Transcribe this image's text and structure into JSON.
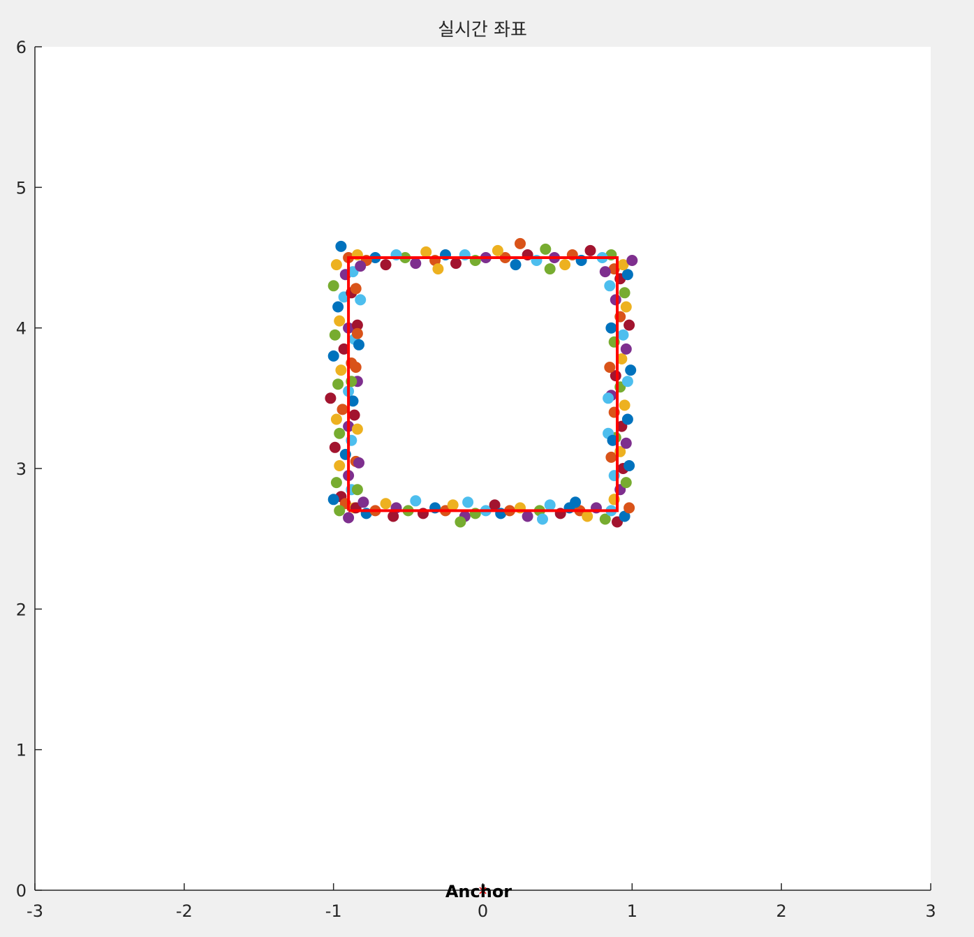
{
  "chart_data": {
    "type": "scatter",
    "title": "실시간 좌표",
    "xlabel": "",
    "ylabel": "",
    "xlim": [
      -3,
      3
    ],
    "ylim": [
      0,
      6
    ],
    "xticks": [
      "-3",
      "-2",
      "-1",
      "0",
      "1",
      "2",
      "3"
    ],
    "yticks": [
      "0",
      "1",
      "2",
      "3",
      "4",
      "5",
      "6"
    ],
    "grid": false,
    "reference_path": {
      "color": "#ff0000",
      "points": [
        [
          -0.9,
          2.7
        ],
        [
          0.9,
          2.7
        ],
        [
          0.9,
          4.5
        ],
        [
          -0.9,
          4.5
        ],
        [
          -0.9,
          2.7
        ]
      ]
    },
    "anchor": {
      "label": "Anchor",
      "x": 0,
      "y": 0,
      "color": "#ff0000"
    },
    "point_colors": [
      "#0072bd",
      "#d95319",
      "#edb120",
      "#7e2f8e",
      "#77ac30",
      "#4dbeee",
      "#a2142f"
    ],
    "points": [
      [
        -0.95,
        4.58
      ],
      [
        -0.9,
        4.5
      ],
      [
        -0.98,
        4.45
      ],
      [
        -0.92,
        4.38
      ],
      [
        -1.0,
        4.3
      ],
      [
        -0.93,
        4.22
      ],
      [
        -0.88,
        4.25
      ],
      [
        -0.97,
        4.15
      ],
      [
        -0.85,
        4.28
      ],
      [
        -0.96,
        4.05
      ],
      [
        -0.9,
        4.0
      ],
      [
        -0.99,
        3.95
      ],
      [
        -0.86,
        3.92
      ],
      [
        -0.93,
        3.85
      ],
      [
        -1.0,
        3.8
      ],
      [
        -0.88,
        3.75
      ],
      [
        -0.95,
        3.7
      ],
      [
        -0.84,
        3.62
      ],
      [
        -0.97,
        3.6
      ],
      [
        -0.9,
        3.55
      ],
      [
        -1.02,
        3.5
      ],
      [
        -0.87,
        3.48
      ],
      [
        -0.94,
        3.42
      ],
      [
        -0.98,
        3.35
      ],
      [
        -0.9,
        3.3
      ],
      [
        -0.96,
        3.25
      ],
      [
        -0.88,
        3.2
      ],
      [
        -0.99,
        3.15
      ],
      [
        -0.92,
        3.1
      ],
      [
        -0.85,
        3.05
      ],
      [
        -0.96,
        3.02
      ],
      [
        -0.9,
        2.95
      ],
      [
        -0.98,
        2.9
      ],
      [
        -0.88,
        2.85
      ],
      [
        -0.95,
        2.8
      ],
      [
        -1.0,
        2.78
      ],
      [
        -0.92,
        2.75
      ],
      [
        -0.86,
        2.72
      ],
      [
        -0.9,
        2.65
      ],
      [
        -0.96,
        2.7
      ],
      [
        -0.82,
        4.2
      ],
      [
        -0.84,
        4.02
      ],
      [
        -0.83,
        3.88
      ],
      [
        -0.85,
        3.72
      ],
      [
        -0.84,
        3.28
      ],
      [
        -0.83,
        3.04
      ],
      [
        -0.84,
        2.85
      ],
      [
        -0.87,
        4.4
      ],
      [
        -0.85,
        2.72
      ],
      [
        -0.78,
        2.68
      ],
      [
        -0.72,
        2.7
      ],
      [
        -0.65,
        2.75
      ],
      [
        -0.58,
        2.72
      ],
      [
        -0.5,
        2.7
      ],
      [
        -0.45,
        2.77
      ],
      [
        -0.4,
        2.68
      ],
      [
        -0.32,
        2.72
      ],
      [
        -0.25,
        2.7
      ],
      [
        -0.2,
        2.74
      ],
      [
        -0.12,
        2.66
      ],
      [
        -0.05,
        2.68
      ],
      [
        0.02,
        2.7
      ],
      [
        0.08,
        2.74
      ],
      [
        0.12,
        2.68
      ],
      [
        0.18,
        2.7
      ],
      [
        0.25,
        2.72
      ],
      [
        0.3,
        2.66
      ],
      [
        0.38,
        2.7
      ],
      [
        0.45,
        2.74
      ],
      [
        0.52,
        2.68
      ],
      [
        0.58,
        2.72
      ],
      [
        0.65,
        2.7
      ],
      [
        0.7,
        2.66
      ],
      [
        0.76,
        2.72
      ],
      [
        0.82,
        2.64
      ],
      [
        0.86,
        2.7
      ],
      [
        0.9,
        2.62
      ],
      [
        0.95,
        2.66
      ],
      [
        0.98,
        2.72
      ],
      [
        0.88,
        2.78
      ],
      [
        0.92,
        2.85
      ],
      [
        0.96,
        2.9
      ],
      [
        0.88,
        2.95
      ],
      [
        0.94,
        3.0
      ],
      [
        0.98,
        3.02
      ],
      [
        0.86,
        3.08
      ],
      [
        0.92,
        3.12
      ],
      [
        0.96,
        3.18
      ],
      [
        0.89,
        3.22
      ],
      [
        0.84,
        3.25
      ],
      [
        0.93,
        3.3
      ],
      [
        0.97,
        3.35
      ],
      [
        0.88,
        3.4
      ],
      [
        0.95,
        3.45
      ],
      [
        0.86,
        3.52
      ],
      [
        0.92,
        3.58
      ],
      [
        0.97,
        3.62
      ],
      [
        0.89,
        3.66
      ],
      [
        0.99,
        3.7
      ],
      [
        0.85,
        3.72
      ],
      [
        0.93,
        3.78
      ],
      [
        0.96,
        3.85
      ],
      [
        0.88,
        3.9
      ],
      [
        0.94,
        3.95
      ],
      [
        0.98,
        4.02
      ],
      [
        0.86,
        4.0
      ],
      [
        0.92,
        4.08
      ],
      [
        0.96,
        4.15
      ],
      [
        0.89,
        4.2
      ],
      [
        0.95,
        4.25
      ],
      [
        0.85,
        4.3
      ],
      [
        0.92,
        4.35
      ],
      [
        0.97,
        4.38
      ],
      [
        0.88,
        4.42
      ],
      [
        0.94,
        4.45
      ],
      [
        1.0,
        4.48
      ],
      [
        0.86,
        4.52
      ],
      [
        0.8,
        4.5
      ],
      [
        0.72,
        4.55
      ],
      [
        0.66,
        4.48
      ],
      [
        0.6,
        4.52
      ],
      [
        0.55,
        4.45
      ],
      [
        0.48,
        4.5
      ],
      [
        0.42,
        4.56
      ],
      [
        0.36,
        4.48
      ],
      [
        0.3,
        4.52
      ],
      [
        0.22,
        4.45
      ],
      [
        0.15,
        4.5
      ],
      [
        0.1,
        4.55
      ],
      [
        0.02,
        4.5
      ],
      [
        -0.05,
        4.48
      ],
      [
        -0.12,
        4.52
      ],
      [
        -0.18,
        4.46
      ],
      [
        -0.25,
        4.52
      ],
      [
        -0.32,
        4.48
      ],
      [
        -0.38,
        4.54
      ],
      [
        -0.45,
        4.46
      ],
      [
        -0.52,
        4.5
      ],
      [
        -0.58,
        4.52
      ],
      [
        -0.65,
        4.45
      ],
      [
        -0.72,
        4.5
      ],
      [
        -0.78,
        4.48
      ],
      [
        -0.84,
        4.52
      ],
      [
        -0.82,
        4.44
      ],
      [
        -0.15,
        2.62
      ],
      [
        0.4,
        2.64
      ],
      [
        -0.6,
        2.66
      ],
      [
        0.62,
        2.76
      ],
      [
        0.25,
        4.6
      ],
      [
        -0.3,
        4.42
      ],
      [
        0.82,
        4.4
      ],
      [
        -0.88,
        3.62
      ],
      [
        0.84,
        3.5
      ],
      [
        -0.86,
        3.38
      ],
      [
        0.87,
        3.2
      ],
      [
        -0.84,
        3.96
      ],
      [
        0.88,
        2.78
      ],
      [
        -0.8,
        2.76
      ],
      [
        0.45,
        4.42
      ],
      [
        -0.1,
        2.76
      ]
    ]
  }
}
